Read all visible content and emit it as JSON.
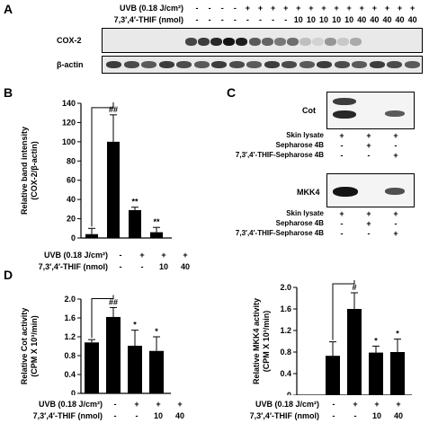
{
  "panel_a": {
    "label": "A",
    "uvb_label": "UVB (0.18 J/cm²)",
    "thif_label": "7,3′,4′-THIF (nmol)",
    "uvb_row": [
      "-",
      "-",
      "-",
      "-",
      "+",
      "+",
      "+",
      "+",
      "+",
      "+",
      "+",
      "+",
      "+",
      "+",
      "+",
      "+",
      "+",
      "+"
    ],
    "thif_row": [
      "-",
      "-",
      "-",
      "-",
      "-",
      "-",
      "-",
      "-",
      "10",
      "10",
      "10",
      "10",
      "10",
      "40",
      "40",
      "40",
      "40",
      "40"
    ],
    "blot_labels": [
      "COX-2",
      "β-actin"
    ]
  },
  "panel_b": {
    "label": "B",
    "uvb_label": "UVB (0.18 J/cm²)",
    "thif_label": "7,3′,4′-THIF (nmol)",
    "uvb_row": [
      "-",
      "+",
      "+",
      "+"
    ],
    "thif_row": [
      "-",
      "-",
      "10",
      "40"
    ],
    "annotations": [
      "##",
      "**",
      "**"
    ]
  },
  "panel_c": {
    "label": "C",
    "blots": [
      {
        "name": "Cot",
        "rows": [
          {
            "label": "Skin lysate",
            "signs": [
              "+",
              "+",
              "+"
            ]
          },
          {
            "label": "Sepharose 4B",
            "signs": [
              "-",
              "+",
              "-"
            ]
          },
          {
            "label": "7,3′,4′-THIF-Sepharose 4B",
            "signs": [
              "-",
              "-",
              "+"
            ]
          }
        ]
      },
      {
        "name": "MKK4",
        "rows": [
          {
            "label": "Skin lysate",
            "signs": [
              "+",
              "+",
              "+"
            ]
          },
          {
            "label": "Sepharose 4B",
            "signs": [
              "-",
              "+",
              "-"
            ]
          },
          {
            "label": "7,3′,4′-THIF-Sepharose 4B",
            "signs": [
              "-",
              "-",
              "+"
            ]
          }
        ]
      }
    ]
  },
  "panel_d": {
    "label": "D",
    "left": {
      "uvb_label": "UVB (0.18 J/cm²)",
      "thif_label": "7,3′,4′-THIF (nmol)",
      "uvb_row": [
        "-",
        "+",
        "+",
        "+"
      ],
      "thif_row": [
        "-",
        "-",
        "10",
        "40"
      ],
      "annotations": [
        "##",
        "*",
        "*"
      ]
    },
    "right": {
      "uvb_label": "UVB (0.18 J/cm²)",
      "thif_label": "7,3′,4′-THIF (nmol)",
      "uvb_row": [
        "-",
        "+",
        "+",
        "+"
      ],
      "thif_row": [
        "-",
        "-",
        "10",
        "40"
      ],
      "annotations": [
        "#",
        "*",
        "*"
      ]
    }
  },
  "chart_data": [
    {
      "type": "bar",
      "categories": [
        "1",
        "2",
        "3",
        "4"
      ],
      "values": [
        4,
        100,
        29,
        6
      ],
      "errors": [
        6,
        28,
        3,
        5
      ],
      "ylabel": "Relative band intensity (COX-2/β-actin)",
      "ylabel_lines": [
        "Relative band intensity",
        "(COX-2/β-actin)"
      ],
      "ylim": [
        0,
        140
      ],
      "yticks": [
        0,
        20,
        40,
        60,
        80,
        100,
        120,
        140
      ]
    },
    {
      "type": "bar",
      "categories": [
        "1",
        "2",
        "3",
        "4"
      ],
      "values": [
        1.08,
        1.62,
        1.01,
        0.9
      ],
      "errors": [
        0.06,
        0.2,
        0.33,
        0.3
      ],
      "ylabel": "Relative Cot activity (CPM X 10³/min)",
      "ylabel_lines": [
        "Relative Cot activity",
        "(CPM X 10³/min)"
      ],
      "ylim": [
        0,
        2.0
      ],
      "yticks": [
        "0",
        "0.4",
        "0.8",
        "1.2",
        "1.6",
        "2.0"
      ]
    },
    {
      "type": "bar",
      "categories": [
        "1",
        "2",
        "3",
        "4"
      ],
      "values": [
        0.73,
        1.6,
        0.79,
        0.8
      ],
      "errors": [
        0.26,
        0.3,
        0.12,
        0.24
      ],
      "ylabel": "Relative MKK4 activity (CPM X 10³/min)",
      "ylabel_lines": [
        "Relative MKK4 activity",
        "(CPM X 10³/min)"
      ],
      "ylim": [
        0,
        2.0
      ],
      "yticks": [
        "0",
        "0.4",
        "0.8",
        "1.2",
        "1.6",
        "2.0"
      ]
    }
  ]
}
